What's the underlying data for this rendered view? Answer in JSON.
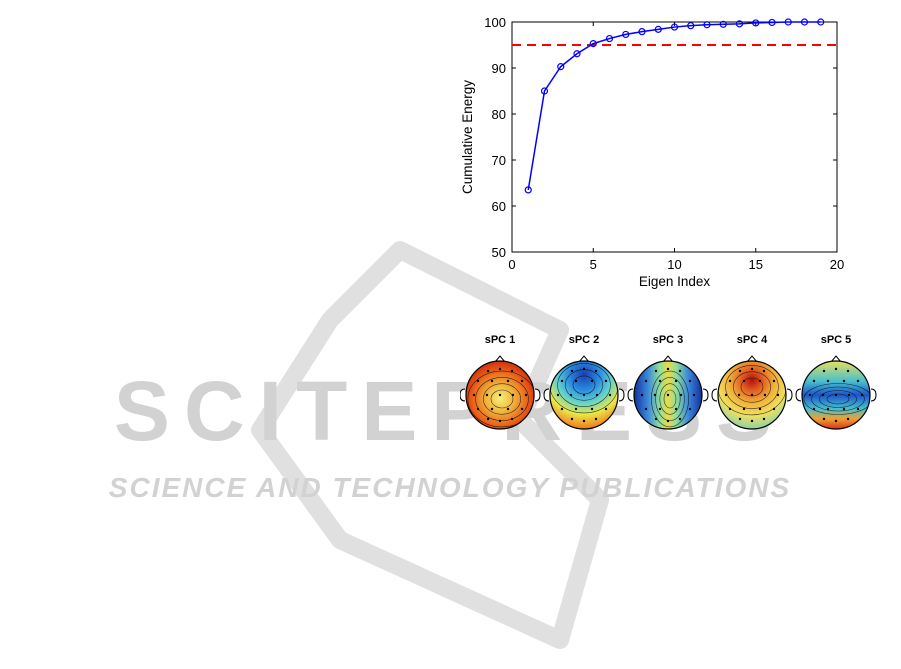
{
  "watermark": {
    "logo_text": "SCITEPRESS",
    "tagline": "SCIENCE AND TECHNOLOGY PUBLICATIONS",
    "color": "#c8c8c8"
  },
  "chart_data": {
    "type": "line",
    "xlabel": "Eigen Index",
    "ylabel": "Cumulative Energy",
    "xlim": [
      0,
      20
    ],
    "ylim": [
      50,
      100
    ],
    "xticks": [
      0,
      5,
      10,
      15,
      20
    ],
    "yticks": [
      50,
      60,
      70,
      80,
      90,
      100
    ],
    "grid": false,
    "series": [
      {
        "marker": "circle",
        "color": "#0000ff",
        "x": [
          1,
          2,
          3,
          4,
          5,
          6,
          7,
          8,
          9,
          10,
          11,
          12,
          13,
          14,
          15,
          16,
          17,
          18,
          19
        ],
        "values": [
          63.5,
          85,
          90.3,
          93.1,
          95.3,
          96.4,
          97.3,
          97.9,
          98.4,
          98.9,
          99.2,
          99.4,
          99.5,
          99.6,
          99.8,
          99.9,
          100,
          100,
          100
        ]
      }
    ],
    "reference_line": {
      "y": 95,
      "color": "#ff0000",
      "style": "dashed"
    }
  },
  "topoplots": {
    "items": [
      {
        "title": "sPC 1",
        "pattern": "central-low"
      },
      {
        "title": "sPC 2",
        "pattern": "front-low"
      },
      {
        "title": "sPC 3",
        "pattern": "lateral-low"
      },
      {
        "title": "sPC 4",
        "pattern": "front-high"
      },
      {
        "title": "sPC 5",
        "pattern": "midline-low"
      }
    ]
  }
}
